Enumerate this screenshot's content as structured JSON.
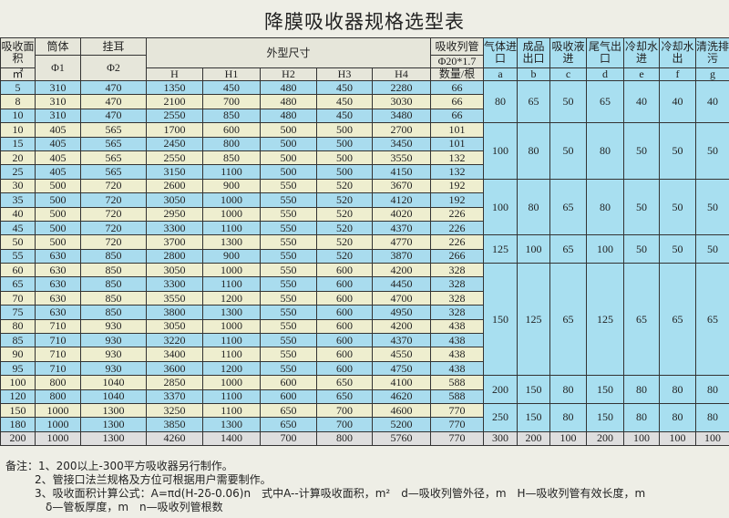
{
  "title": "降膜吸收器规格选型表",
  "header": {
    "area": "吸收面积",
    "area_unit": "㎡",
    "shell": "筒体",
    "phi1": "Φ1",
    "lug": "挂耳",
    "phi2": "Φ2",
    "dims": "外型尺寸",
    "H": "H",
    "H1": "H1",
    "H2": "H2",
    "H3": "H3",
    "H4": "H4",
    "tubes": "吸收列管",
    "tube_spec": "Φ20*1.7",
    "tube_count": "数量/根",
    "a": "气体进口",
    "b": "成品出口",
    "c": "吸收液进",
    "d": "尾气出口",
    "e": "冷却水进",
    "f": "冷却水出",
    "g": "清洗排污",
    "la": "a",
    "lb": "b",
    "lc": "c",
    "ld": "d",
    "le": "e",
    "lf": "f",
    "lg": "g"
  },
  "rows": [
    [
      "5",
      "310",
      "470",
      "1350",
      "450",
      "480",
      "450",
      "2280",
      "66"
    ],
    [
      "8",
      "310",
      "470",
      "2100",
      "700",
      "480",
      "450",
      "3030",
      "66"
    ],
    [
      "10",
      "310",
      "470",
      "2550",
      "850",
      "480",
      "450",
      "3480",
      "66"
    ],
    [
      "10",
      "405",
      "565",
      "1700",
      "600",
      "500",
      "500",
      "2700",
      "101"
    ],
    [
      "15",
      "405",
      "565",
      "2450",
      "800",
      "500",
      "500",
      "3450",
      "101"
    ],
    [
      "20",
      "405",
      "565",
      "2550",
      "850",
      "500",
      "500",
      "3550",
      "132"
    ],
    [
      "25",
      "405",
      "565",
      "3150",
      "1100",
      "500",
      "500",
      "4150",
      "132"
    ],
    [
      "30",
      "500",
      "720",
      "2600",
      "900",
      "550",
      "520",
      "3670",
      "192"
    ],
    [
      "35",
      "500",
      "720",
      "3050",
      "1000",
      "550",
      "520",
      "4120",
      "192"
    ],
    [
      "40",
      "500",
      "720",
      "2950",
      "1000",
      "550",
      "520",
      "4020",
      "226"
    ],
    [
      "45",
      "500",
      "720",
      "3300",
      "1100",
      "550",
      "520",
      "4370",
      "226"
    ],
    [
      "50",
      "500",
      "720",
      "3700",
      "1300",
      "550",
      "520",
      "4770",
      "226"
    ],
    [
      "55",
      "630",
      "850",
      "2800",
      "900",
      "550",
      "520",
      "3870",
      "266"
    ],
    [
      "60",
      "630",
      "850",
      "3050",
      "1000",
      "550",
      "600",
      "4200",
      "328"
    ],
    [
      "65",
      "630",
      "850",
      "3300",
      "1100",
      "550",
      "600",
      "4450",
      "328"
    ],
    [
      "70",
      "630",
      "850",
      "3550",
      "1200",
      "550",
      "600",
      "4700",
      "328"
    ],
    [
      "75",
      "630",
      "850",
      "3800",
      "1300",
      "550",
      "600",
      "4950",
      "328"
    ],
    [
      "80",
      "710",
      "930",
      "3050",
      "1000",
      "550",
      "600",
      "4200",
      "438"
    ],
    [
      "85",
      "710",
      "930",
      "3220",
      "1100",
      "550",
      "600",
      "4370",
      "438"
    ],
    [
      "90",
      "710",
      "930",
      "3400",
      "1100",
      "550",
      "600",
      "4550",
      "438"
    ],
    [
      "95",
      "710",
      "930",
      "3600",
      "1200",
      "550",
      "600",
      "4750",
      "438"
    ],
    [
      "100",
      "800",
      "1040",
      "2850",
      "1000",
      "600",
      "650",
      "4100",
      "588"
    ],
    [
      "120",
      "800",
      "1040",
      "3370",
      "1100",
      "600",
      "650",
      "4620",
      "588"
    ],
    [
      "150",
      "1000",
      "1300",
      "3250",
      "1100",
      "650",
      "700",
      "4600",
      "770"
    ],
    [
      "180",
      "1000",
      "1300",
      "3850",
      "1300",
      "650",
      "700",
      "5200",
      "770"
    ],
    [
      "200",
      "1000",
      "1300",
      "4260",
      "1400",
      "700",
      "800",
      "5760",
      "770"
    ]
  ],
  "nozzles": [
    [
      "80",
      "65",
      "50",
      "65",
      "40",
      "40",
      "40"
    ],
    [
      "100",
      "80",
      "50",
      "80",
      "50",
      "50",
      "50"
    ],
    [
      "100",
      "80",
      "65",
      "80",
      "50",
      "50",
      "50"
    ],
    [
      "125",
      "100",
      "65",
      "100",
      "50",
      "50",
      "50"
    ],
    [
      "150",
      "125",
      "65",
      "125",
      "65",
      "65",
      "65"
    ],
    [
      "200",
      "150",
      "80",
      "150",
      "80",
      "80",
      "80"
    ],
    [
      "250",
      "150",
      "80",
      "150",
      "80",
      "80",
      "80"
    ],
    [
      "300",
      "200",
      "100",
      "200",
      "100",
      "100",
      "100"
    ]
  ],
  "notes": {
    "label": "备注：",
    "n1": "1、200以上-300平方吸收器另行制作。",
    "n2": "2、管接口法兰规格及方位可根据用户需要制作。",
    "n3": "3、吸收面积计算公式：A=πd(H-2δ-0.06)n　式中A--计算吸收面积，m²　d—吸收列管外径，m　H—吸收列管有效长度，m",
    "n4": "δ—管板厚度，m　n—吸收列管根数"
  }
}
